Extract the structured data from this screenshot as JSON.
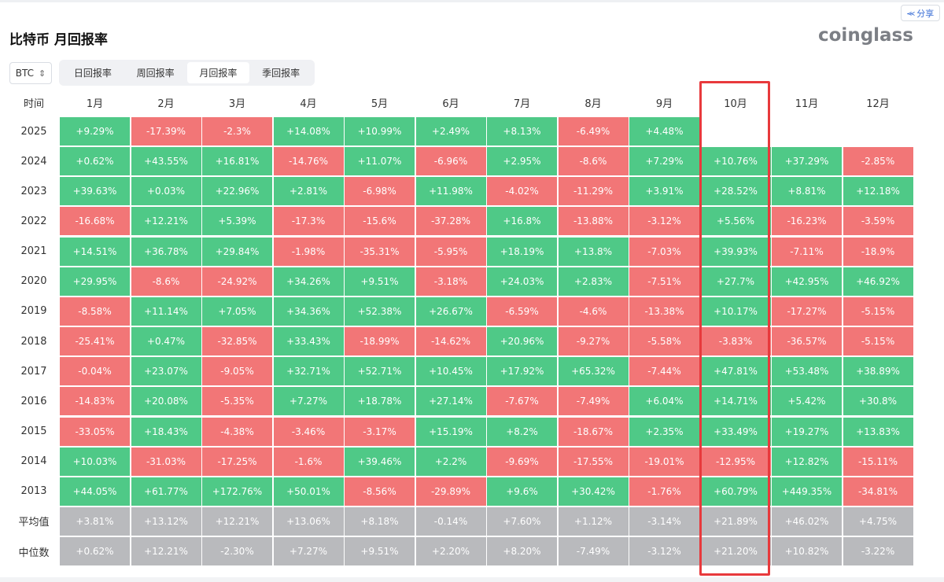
{
  "title": "比特币 月回报率",
  "logo": "coinglass",
  "share": {
    "label": "分享",
    "icon": "share-icon"
  },
  "coin_select": {
    "value": "BTC",
    "icon": "sort-arrows-icon"
  },
  "tabs": [
    {
      "label": "日回报率",
      "active": false
    },
    {
      "label": "周回报率",
      "active": false
    },
    {
      "label": "月回报率",
      "active": true
    },
    {
      "label": "季回报率",
      "active": false
    }
  ],
  "colors": {
    "positive": "#4fc987",
    "negative": "#f27677",
    "stat": "#b9babd",
    "highlight": "#e8393c"
  },
  "table": {
    "corner": "时间",
    "months": [
      "1月",
      "2月",
      "3月",
      "4月",
      "5月",
      "6月",
      "7月",
      "8月",
      "9月",
      "10月",
      "11月",
      "12月"
    ],
    "rows": [
      {
        "label": "2025",
        "values": [
          "+9.29%",
          "-17.39%",
          "-2.3%",
          "+14.08%",
          "+10.99%",
          "+2.49%",
          "+8.13%",
          "-6.49%",
          "+4.48%",
          "",
          "",
          ""
        ]
      },
      {
        "label": "2024",
        "values": [
          "+0.62%",
          "+43.55%",
          "+16.81%",
          "-14.76%",
          "+11.07%",
          "-6.96%",
          "+2.95%",
          "-8.6%",
          "+7.29%",
          "+10.76%",
          "+37.29%",
          "-2.85%"
        ]
      },
      {
        "label": "2023",
        "values": [
          "+39.63%",
          "+0.03%",
          "+22.96%",
          "+2.81%",
          "-6.98%",
          "+11.98%",
          "-4.02%",
          "-11.29%",
          "+3.91%",
          "+28.52%",
          "+8.81%",
          "+12.18%"
        ]
      },
      {
        "label": "2022",
        "values": [
          "-16.68%",
          "+12.21%",
          "+5.39%",
          "-17.3%",
          "-15.6%",
          "-37.28%",
          "+16.8%",
          "-13.88%",
          "-3.12%",
          "+5.56%",
          "-16.23%",
          "-3.59%"
        ]
      },
      {
        "label": "2021",
        "values": [
          "+14.51%",
          "+36.78%",
          "+29.84%",
          "-1.98%",
          "-35.31%",
          "-5.95%",
          "+18.19%",
          "+13.8%",
          "-7.03%",
          "+39.93%",
          "-7.11%",
          "-18.9%"
        ]
      },
      {
        "label": "2020",
        "values": [
          "+29.95%",
          "-8.6%",
          "-24.92%",
          "+34.26%",
          "+9.51%",
          "-3.18%",
          "+24.03%",
          "+2.83%",
          "-7.51%",
          "+27.7%",
          "+42.95%",
          "+46.92%"
        ]
      },
      {
        "label": "2019",
        "values": [
          "-8.58%",
          "+11.14%",
          "+7.05%",
          "+34.36%",
          "+52.38%",
          "+26.67%",
          "-6.59%",
          "-4.6%",
          "-13.38%",
          "+10.17%",
          "-17.27%",
          "-5.15%"
        ]
      },
      {
        "label": "2018",
        "values": [
          "-25.41%",
          "+0.47%",
          "-32.85%",
          "+33.43%",
          "-18.99%",
          "-14.62%",
          "+20.96%",
          "-9.27%",
          "-5.58%",
          "-3.83%",
          "-36.57%",
          "-5.15%"
        ]
      },
      {
        "label": "2017",
        "values": [
          "-0.04%",
          "+23.07%",
          "-9.05%",
          "+32.71%",
          "+52.71%",
          "+10.45%",
          "+17.92%",
          "+65.32%",
          "-7.44%",
          "+47.81%",
          "+53.48%",
          "+38.89%"
        ]
      },
      {
        "label": "2016",
        "values": [
          "-14.83%",
          "+20.08%",
          "-5.35%",
          "+7.27%",
          "+18.78%",
          "+27.14%",
          "-7.67%",
          "-7.49%",
          "+6.04%",
          "+14.71%",
          "+5.42%",
          "+30.8%"
        ]
      },
      {
        "label": "2015",
        "values": [
          "-33.05%",
          "+18.43%",
          "-4.38%",
          "-3.46%",
          "-3.17%",
          "+15.19%",
          "+8.2%",
          "-18.67%",
          "+2.35%",
          "+33.49%",
          "+19.27%",
          "+13.83%"
        ]
      },
      {
        "label": "2014",
        "values": [
          "+10.03%",
          "-31.03%",
          "-17.25%",
          "-1.6%",
          "+39.46%",
          "+2.2%",
          "-9.69%",
          "-17.55%",
          "-19.01%",
          "-12.95%",
          "+12.82%",
          "-15.11%"
        ]
      },
      {
        "label": "2013",
        "values": [
          "+44.05%",
          "+61.77%",
          "+172.76%",
          "+50.01%",
          "-8.56%",
          "-29.89%",
          "+9.6%",
          "+30.42%",
          "-1.76%",
          "+60.79%",
          "+449.35%",
          "-34.81%"
        ]
      }
    ],
    "stats": [
      {
        "label": "平均值",
        "values": [
          "+3.81%",
          "+13.12%",
          "+12.21%",
          "+13.06%",
          "+8.18%",
          "-0.14%",
          "+7.60%",
          "+1.12%",
          "-3.14%",
          "+21.89%",
          "+46.02%",
          "+4.75%"
        ]
      },
      {
        "label": "中位数",
        "values": [
          "+0.62%",
          "+12.21%",
          "-2.30%",
          "+7.27%",
          "+9.51%",
          "+2.20%",
          "+8.20%",
          "-7.49%",
          "-3.12%",
          "+21.20%",
          "+10.82%",
          "-3.22%"
        ]
      }
    ],
    "highlighted_month": "10月"
  }
}
